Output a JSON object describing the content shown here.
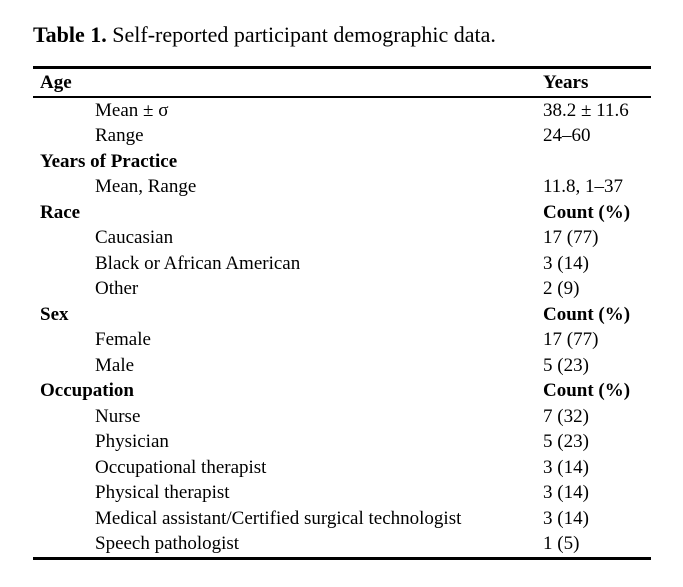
{
  "title": {
    "label": "Table 1.",
    "text": " Self-reported participant demographic data."
  },
  "table": {
    "header": {
      "col1": "Age",
      "col2": "Years"
    },
    "rows": [
      {
        "label": "Mean ± σ",
        "value": "38.2 ± 11.6",
        "indent": true,
        "bold": false
      },
      {
        "label": "Range",
        "value": "24–60",
        "indent": true,
        "bold": false
      },
      {
        "label": "Years of Practice",
        "value": "",
        "indent": false,
        "bold": true
      },
      {
        "label": "Mean, Range",
        "value": "11.8, 1–37",
        "indent": true,
        "bold": false
      },
      {
        "label": "Race",
        "value": "Count (%)",
        "indent": false,
        "bold": true
      },
      {
        "label": "Caucasian",
        "value": "17 (77)",
        "indent": true,
        "bold": false
      },
      {
        "label": "Black or African American",
        "value": "3 (14)",
        "indent": true,
        "bold": false
      },
      {
        "label": "Other",
        "value": "2 (9)",
        "indent": true,
        "bold": false
      },
      {
        "label": "Sex",
        "value": "Count (%)",
        "indent": false,
        "bold": true
      },
      {
        "label": "Female",
        "value": "17 (77)",
        "indent": true,
        "bold": false
      },
      {
        "label": "Male",
        "value": "5 (23)",
        "indent": true,
        "bold": false
      },
      {
        "label": "Occupation",
        "value": "Count (%)",
        "indent": false,
        "bold": true
      },
      {
        "label": "Nurse",
        "value": "7 (32)",
        "indent": true,
        "bold": false
      },
      {
        "label": "Physician",
        "value": "5 (23)",
        "indent": true,
        "bold": false
      },
      {
        "label": "Occupational therapist",
        "value": "3 (14)",
        "indent": true,
        "bold": false
      },
      {
        "label": "Physical therapist",
        "value": "3 (14)",
        "indent": true,
        "bold": false
      },
      {
        "label": "Medical assistant/Certified surgical technologist",
        "value": "3 (14)",
        "indent": true,
        "bold": false
      },
      {
        "label": "Speech pathologist",
        "value": "1 (5)",
        "indent": true,
        "bold": false
      }
    ]
  },
  "colors": {
    "text": "#000000",
    "background": "#ffffff",
    "rule": "#000000"
  }
}
